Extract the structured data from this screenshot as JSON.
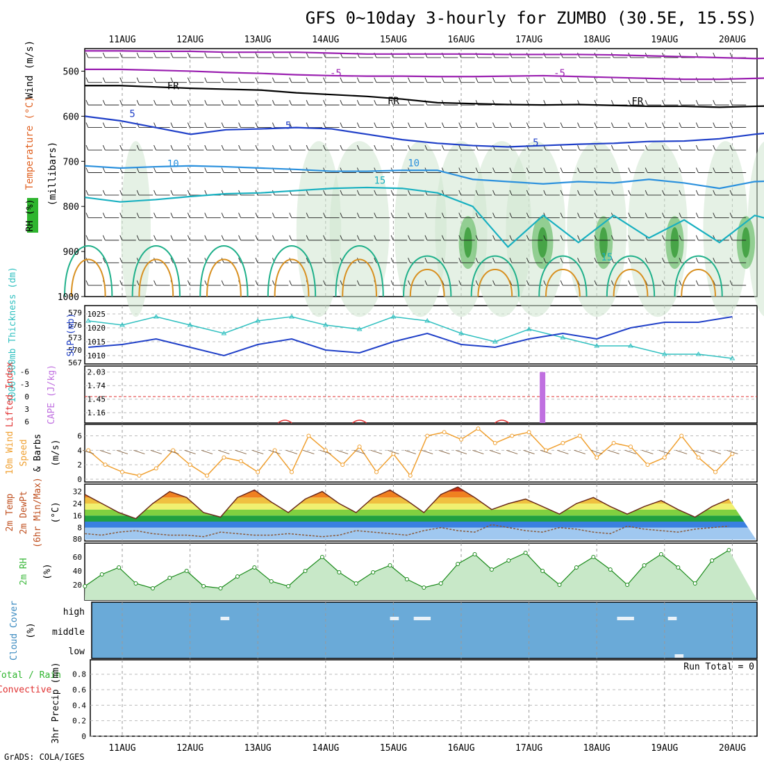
{
  "title": "GFS 0~10day 3-hourly for ZUMBO (30.5E, 15.5S)",
  "footer": "GrADS: COLA/IGES",
  "days": [
    "11AUG",
    "12AUG",
    "13AUG",
    "14AUG",
    "15AUG",
    "16AUG",
    "17AUG",
    "18AUG",
    "19AUG",
    "20AUG"
  ],
  "colors": {
    "wind_barb": "#222222",
    "freezing": "#000000",
    "neg5": "#9a1fb0",
    "iso5": "#1f3fc8",
    "iso10": "#2a90dd",
    "iso15": "#18b0c0",
    "iso20": "#1fb08a",
    "iso25": "#d89020",
    "rh": "#3fba3f",
    "slp": "#2040c8",
    "thickness": "#30c0c0",
    "lifted": "#e03030",
    "cape": "#c070e0",
    "wind10": "#f0a030",
    "cloud": "#6aaad8",
    "grid": "#b0b0b0"
  },
  "chart_data": [
    {
      "type": "area",
      "panel": "upper-air",
      "ylabel_parts": [
        "RH (%)",
        "Temperature (°C)",
        "Wind (m/s)"
      ],
      "ylabel_units": "(millibars)",
      "yticks": [
        500,
        600,
        700,
        800,
        900,
        1000
      ],
      "ylim": [
        450,
        1000
      ],
      "contour_labels": [
        {
          "text": "FR",
          "day": 0.75,
          "p": 540
        },
        {
          "text": "FR",
          "day": 4.0,
          "p": 573
        },
        {
          "text": "FR",
          "day": 7.6,
          "p": 574
        },
        {
          "text": "-5",
          "day": 3.15,
          "p": 512
        },
        {
          "text": "-5",
          "day": 6.45,
          "p": 512
        },
        {
          "text": "5",
          "day": 0.15,
          "p": 602
        },
        {
          "text": "5",
          "day": 2.45,
          "p": 628
        },
        {
          "text": "5",
          "day": 6.1,
          "p": 666
        },
        {
          "text": "10",
          "day": 0.75,
          "p": 713
        },
        {
          "text": "10",
          "day": 4.3,
          "p": 711
        },
        {
          "text": "15",
          "day": 3.8,
          "p": 750
        },
        {
          "text": "15",
          "day": 7.15,
          "p": 920
        }
      ],
      "isotherms": [
        {
          "label": "FR",
          "color": "freezing",
          "p": [
            532,
            532,
            535,
            538,
            540,
            542,
            548,
            552,
            556,
            562,
            570,
            572,
            574,
            575,
            574,
            576,
            578,
            578,
            580,
            578,
            576
          ]
        },
        {
          "label": "-5",
          "color": "neg5",
          "p": [
            496,
            496,
            498,
            500,
            503,
            505,
            508,
            510,
            511,
            511,
            512,
            512,
            511,
            510,
            512,
            514,
            516,
            518,
            518,
            516,
            514
          ]
        },
        {
          "label": "-5b",
          "color": "neg5",
          "p": [
            455,
            455,
            456,
            456,
            458,
            458,
            458,
            460,
            462,
            462,
            462,
            462,
            463,
            463,
            463,
            464,
            466,
            468,
            470,
            472,
            470
          ]
        },
        {
          "label": "5",
          "color": "iso5",
          "p": [
            600,
            610,
            625,
            640,
            630,
            628,
            625,
            628,
            640,
            652,
            660,
            665,
            668,
            665,
            662,
            660,
            656,
            655,
            650,
            640,
            632
          ]
        },
        {
          "label": "10",
          "color": "iso10",
          "p": [
            710,
            715,
            712,
            710,
            712,
            715,
            718,
            722,
            722,
            720,
            720,
            740,
            745,
            750,
            745,
            748,
            740,
            748,
            760,
            745,
            742
          ]
        },
        {
          "label": "15",
          "color": "iso15",
          "p": [
            780,
            790,
            785,
            778,
            772,
            770,
            765,
            760,
            758,
            760,
            770,
            800,
            890,
            820,
            880,
            820,
            870,
            830,
            880,
            820,
            840
          ]
        }
      ]
    },
    {
      "type": "line",
      "panel": "slp-thickness",
      "x_days": [
        0,
        0.5,
        1,
        1.5,
        2,
        2.5,
        3,
        3.5,
        4,
        4.5,
        5,
        5.5,
        6,
        6.5,
        7,
        7.5,
        8,
        8.5,
        9,
        9.5
      ],
      "series": [
        {
          "name": "SLP (mb)",
          "axis": "right",
          "values": [
            1013,
            1014,
            1016,
            1013,
            1010,
            1014,
            1016,
            1012,
            1011,
            1015,
            1018,
            1014,
            1013,
            1016,
            1018,
            1016,
            1020,
            1022,
            1022,
            1024
          ]
        },
        {
          "name": "1000-500mb Thickness (dm)",
          "axis": "left",
          "values": [
            577,
            576,
            578,
            576,
            574,
            577,
            578,
            576,
            575,
            578,
            577,
            574,
            572,
            575,
            573,
            571,
            571,
            569,
            569,
            568
          ]
        }
      ],
      "left_ticks": [
        567,
        570,
        573,
        576,
        579
      ],
      "right_ticks": [
        1010,
        1015,
        1020,
        1025
      ],
      "ylabel_left": "1000-500mb Thickness (dm)",
      "ylabel_right": "SLP (mb)"
    },
    {
      "type": "bar",
      "panel": "lifted-cape",
      "ylabel_left": "Lifted Index",
      "ylabel_right": "CAPE (J/kg)",
      "left_ticks": [
        -6,
        -3,
        0,
        3,
        6
      ],
      "right_ticks": [
        1.16,
        1.45,
        1.74,
        2.03
      ],
      "cape_bars": [
        {
          "day": 6.2,
          "value": 2.03
        }
      ],
      "lifted_bumps": [
        {
          "day": 2.4,
          "value": 6.2
        },
        {
          "day": 3.5,
          "value": 6.3
        },
        {
          "day": 5.6,
          "value": 6.5
        }
      ]
    },
    {
      "type": "line",
      "panel": "wind10m",
      "ylabel_parts": [
        "10m Wind",
        "Speed",
        "& Barbs"
      ],
      "ylabel_units": "(m/s)",
      "yticks": [
        0,
        2,
        4,
        6
      ],
      "x_days": [
        0,
        0.25,
        0.5,
        0.75,
        1,
        1.25,
        1.5,
        1.75,
        2,
        2.25,
        2.5,
        2.75,
        3,
        3.25,
        3.5,
        3.75,
        4,
        4.25,
        4.5,
        4.75,
        5,
        5.25,
        5.5,
        5.75,
        6,
        6.25,
        6.5,
        6.75,
        7,
        7.25,
        7.5,
        7.75,
        8,
        8.25,
        8.5,
        8.75,
        9,
        9.25,
        9.5
      ],
      "values": [
        4,
        2,
        1,
        0.5,
        1.5,
        4,
        2,
        0.5,
        3,
        2.5,
        1,
        4,
        1,
        6,
        4,
        2,
        4.5,
        1,
        3.5,
        0.5,
        6,
        6.5,
        5.5,
        7,
        5,
        6,
        6.5,
        4,
        5,
        6,
        3,
        5,
        4.5,
        2,
        3,
        6,
        3,
        1,
        3.5
      ],
      "series_color": "wind10"
    },
    {
      "type": "area",
      "panel": "temp2m",
      "ylabel_parts": [
        "2m Temp",
        "2m DewPt",
        "(6hr Min/Max)"
      ],
      "ylabel_units": "(°C)",
      "yticks": [
        8,
        16,
        24,
        32
      ],
      "zero_label": "80",
      "x_days": [
        0,
        0.25,
        0.5,
        0.75,
        1,
        1.25,
        1.5,
        1.75,
        2,
        2.25,
        2.5,
        2.75,
        3,
        3.25,
        3.5,
        3.75,
        4,
        4.25,
        4.5,
        4.75,
        5,
        5.25,
        5.5,
        5.75,
        6,
        6.25,
        6.5,
        6.75,
        7,
        7.25,
        7.5,
        7.75,
        8,
        8.25,
        8.5,
        8.75,
        9,
        9.25,
        9.5
      ],
      "temp": [
        30,
        24,
        18,
        14,
        24,
        32,
        28,
        18,
        15,
        28,
        33,
        25,
        18,
        27,
        32,
        24,
        18,
        28,
        33,
        26,
        18,
        30,
        35,
        28,
        20,
        24,
        27,
        22,
        17,
        24,
        28,
        22,
        17,
        22,
        26,
        20,
        15,
        22,
        27
      ],
      "dewpt": [
        4,
        3,
        5,
        6,
        4,
        3,
        3,
        2,
        5,
        4,
        3,
        3,
        4,
        3,
        2,
        3,
        6,
        5,
        4,
        3,
        6,
        8,
        6,
        5,
        10,
        8,
        6,
        5,
        8,
        7,
        5,
        4,
        9,
        7,
        6,
        5,
        7,
        8,
        9
      ],
      "temp_color": "#d04010",
      "dewpt_color": "#8a5a3a"
    },
    {
      "type": "area",
      "panel": "rh2m",
      "ylabel": "2m RH",
      "ylabel_units": "(%)",
      "yticks": [
        20,
        40,
        60
      ],
      "x_days": [
        0,
        0.25,
        0.5,
        0.75,
        1,
        1.25,
        1.5,
        1.75,
        2,
        2.25,
        2.5,
        2.75,
        3,
        3.25,
        3.5,
        3.75,
        4,
        4.25,
        4.5,
        4.75,
        5,
        5.25,
        5.5,
        5.75,
        6,
        6.25,
        6.5,
        6.75,
        7,
        7.25,
        7.5,
        7.75,
        8,
        8.25,
        8.5,
        8.75,
        9,
        9.25,
        9.5
      ],
      "values": [
        18,
        35,
        45,
        22,
        15,
        30,
        40,
        18,
        15,
        32,
        45,
        25,
        18,
        40,
        60,
        38,
        22,
        38,
        48,
        28,
        16,
        22,
        50,
        64,
        42,
        55,
        66,
        40,
        20,
        45,
        60,
        42,
        20,
        48,
        64,
        45,
        22,
        55,
        70
      ],
      "series_color": "rh"
    },
    {
      "type": "heatmap",
      "panel": "cloud",
      "ylabel": "Cloud Cover",
      "ylabel_units": "(%)",
      "levels": [
        "high",
        "middle",
        "low"
      ],
      "gaps": [
        {
          "level": "high",
          "from": 1.45,
          "to": 1.58
        },
        {
          "level": "high",
          "from": 3.95,
          "to": 4.08
        },
        {
          "level": "high",
          "from": 4.3,
          "to": 4.55
        },
        {
          "level": "high",
          "from": 7.3,
          "to": 7.55
        },
        {
          "level": "high",
          "from": 8.05,
          "to": 8.18
        },
        {
          "level": "low",
          "from": 8.15,
          "to": 8.28
        }
      ]
    },
    {
      "type": "bar",
      "panel": "precip",
      "ylabel_parts": [
        "Total / Rain",
        "Convective"
      ],
      "ylabel_units": "3hr Precip (mm)",
      "yticks": [
        0,
        0.2,
        0.4,
        0.6,
        0.8
      ],
      "run_total": "Run Total = 0",
      "values": []
    }
  ]
}
